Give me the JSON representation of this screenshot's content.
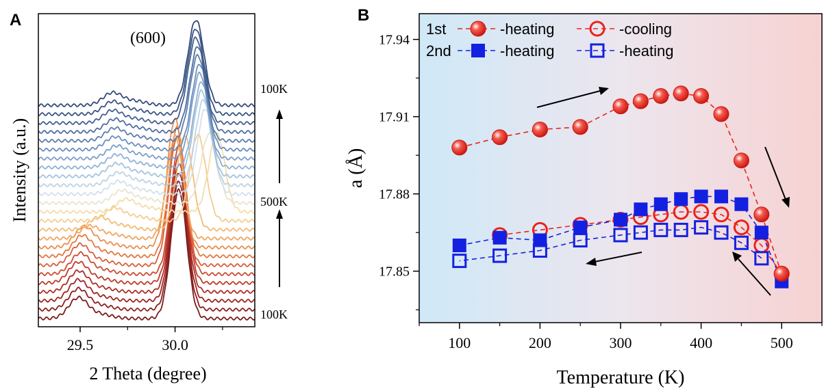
{
  "chart_data": [
    {
      "panel_label": "A",
      "type": "line",
      "xlabel": "2 Theta (degree)",
      "ylabel": "Intensity (a.u.)",
      "xlim": [
        29.28,
        30.42
      ],
      "x_ticks": [
        "29.5",
        "30.0"
      ],
      "x_tick_values": [
        29.5,
        30.0
      ],
      "peak_label": "(600)",
      "temperature_labels": [
        "100K",
        "500K",
        "100K"
      ],
      "notes": "Waterfall of stacked XRD patterns; heating 100K to 500K (bottom to middle), cooling 500K to 100K (middle to top).",
      "series": [
        {
          "temperature_K": 100,
          "main_peak": 30.02,
          "small_peak": 29.49,
          "color": "#7a1c1c"
        },
        {
          "temperature_K": 150,
          "main_peak": 30.02,
          "small_peak": 29.49,
          "color": "#8b2020"
        },
        {
          "temperature_K": 200,
          "main_peak": 30.02,
          "small_peak": 29.49,
          "color": "#9c2522"
        },
        {
          "temperature_K": 250,
          "main_peak": 30.02,
          "small_peak": 29.49,
          "color": "#ad2d25"
        },
        {
          "temperature_K": 300,
          "main_peak": 30.02,
          "small_peak": 29.49,
          "color": "#bf3a2a"
        },
        {
          "temperature_K": 325,
          "main_peak": 30.02,
          "small_peak": 29.5,
          "color": "#cc4b30"
        },
        {
          "temperature_K": 350,
          "main_peak": 30.01,
          "small_peak": 29.5,
          "color": "#d95f38"
        },
        {
          "temperature_K": 375,
          "main_peak": 30.01,
          "small_peak": 29.51,
          "color": "#e3773f"
        },
        {
          "temperature_K": 400,
          "main_peak": 30.0,
          "small_peak": 29.52,
          "color": "#eb8e4c"
        },
        {
          "temperature_K": 425,
          "main_peak": 30.0,
          "small_peak": 29.55,
          "color": "#f0a55e"
        },
        {
          "temperature_K": 450,
          "main_peak": 30.05,
          "small_peak": 29.6,
          "color": "#f3ba74"
        },
        {
          "temperature_K": 475,
          "main_peak": 30.12,
          "small_peak": 29.68,
          "color": "#f5cc8c"
        },
        {
          "temperature_K": 500,
          "main_peak": 30.22,
          "small_peak": 29.74,
          "color": "#f4dca8"
        },
        {
          "temperature_K": 475,
          "main_peak": 30.18,
          "small_peak": 29.72,
          "color": "#e8e4cf"
        },
        {
          "temperature_K": 450,
          "main_peak": 30.16,
          "small_peak": 29.7,
          "color": "#d3e0e8"
        },
        {
          "temperature_K": 425,
          "main_peak": 30.15,
          "small_peak": 29.7,
          "color": "#bcd3e6"
        },
        {
          "temperature_K": 400,
          "main_peak": 30.14,
          "small_peak": 29.69,
          "color": "#a5c3df"
        },
        {
          "temperature_K": 375,
          "main_peak": 30.14,
          "small_peak": 29.69,
          "color": "#8fb1d5"
        },
        {
          "temperature_K": 350,
          "main_peak": 30.13,
          "small_peak": 29.69,
          "color": "#7b9ec9"
        },
        {
          "temperature_K": 325,
          "main_peak": 30.13,
          "small_peak": 29.68,
          "color": "#6a8dbc"
        },
        {
          "temperature_K": 300,
          "main_peak": 30.12,
          "small_peak": 29.68,
          "color": "#5b7cad"
        },
        {
          "temperature_K": 250,
          "main_peak": 30.12,
          "small_peak": 29.68,
          "color": "#4e6d9e"
        },
        {
          "temperature_K": 200,
          "main_peak": 30.11,
          "small_peak": 29.67,
          "color": "#435f90"
        },
        {
          "temperature_K": 150,
          "main_peak": 30.11,
          "small_peak": 29.67,
          "color": "#3a5483"
        },
        {
          "temperature_K": 100,
          "main_peak": 30.11,
          "small_peak": 29.67,
          "color": "#324a78"
        }
      ]
    },
    {
      "panel_label": "B",
      "type": "scatter",
      "xlabel": "Temperature (K)",
      "ylabel": "a (Å)",
      "xlim": [
        50,
        550
      ],
      "ylim": [
        17.83,
        17.95
      ],
      "x_ticks": [
        100,
        200,
        300,
        400,
        500
      ],
      "y_ticks": [
        "17.85",
        "17.88",
        "17.91",
        "17.94"
      ],
      "y_tick_values": [
        17.85,
        17.88,
        17.91,
        17.94
      ],
      "legend_position": "top-left",
      "legend_rows": [
        {
          "label": "1st",
          "entries": [
            "-heating",
            "-cooling"
          ]
        },
        {
          "label": "2nd",
          "entries": [
            "-heating",
            "-heating"
          ]
        }
      ],
      "background_gradient": [
        "#cfe8f7",
        "#ece6ee",
        "#f7d2d2"
      ],
      "series": [
        {
          "legend_row": "1st",
          "name": "-heating",
          "marker": "filled-circle",
          "color": "#e8231b",
          "x": [
            100,
            150,
            200,
            250,
            300,
            325,
            350,
            375,
            400,
            425,
            450,
            475,
            500
          ],
          "y": [
            17.898,
            17.902,
            17.905,
            17.906,
            17.914,
            17.916,
            17.918,
            17.919,
            17.918,
            17.911,
            17.893,
            17.872,
            17.849
          ]
        },
        {
          "legend_row": "1st",
          "name": "-cooling",
          "marker": "open-circle",
          "color": "#e8231b",
          "x": [
            500,
            475,
            450,
            425,
            400,
            375,
            350,
            325,
            300,
            250,
            200,
            150
          ],
          "y": [
            17.849,
            17.86,
            17.867,
            17.872,
            17.873,
            17.873,
            17.872,
            17.871,
            17.87,
            17.868,
            17.866,
            17.864
          ]
        },
        {
          "legend_row": "2nd",
          "name": "-heating",
          "marker": "filled-square",
          "color": "#1420e0",
          "x": [
            100,
            150,
            200,
            250,
            300,
            325,
            350,
            375,
            400,
            425,
            450,
            475,
            500
          ],
          "y": [
            17.86,
            17.863,
            17.862,
            17.867,
            17.87,
            17.874,
            17.876,
            17.878,
            17.879,
            17.879,
            17.876,
            17.865,
            17.846
          ]
        },
        {
          "legend_row": "2nd",
          "name": "-heating",
          "marker": "open-square",
          "color": "#1420e0",
          "x": [
            475,
            450,
            425,
            400,
            375,
            350,
            325,
            300,
            250,
            200,
            150,
            100
          ],
          "y": [
            17.855,
            17.861,
            17.865,
            17.867,
            17.866,
            17.866,
            17.865,
            17.864,
            17.862,
            17.858,
            17.856,
            17.854
          ]
        }
      ],
      "arrows": [
        {
          "direction": "up-right",
          "meaning": "1st heating"
        },
        {
          "direction": "down-right",
          "meaning": "1st decrease near transition"
        },
        {
          "direction": "up-left",
          "meaning": "cooling"
        },
        {
          "direction": "left",
          "meaning": "cooling"
        }
      ]
    }
  ]
}
